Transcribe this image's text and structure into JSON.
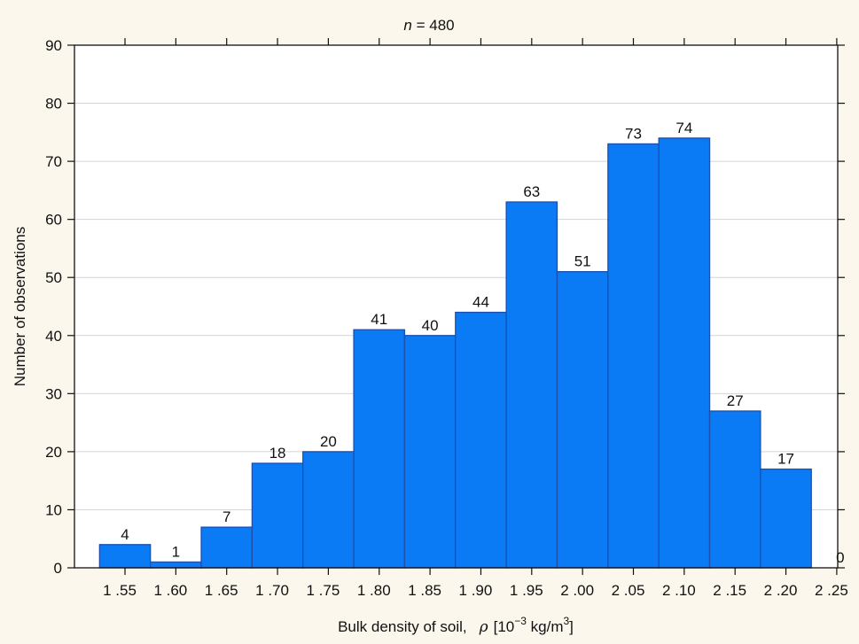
{
  "chart_data": {
    "type": "bar",
    "title_prefix": "n",
    "title_suffix": " = 480",
    "xlabel_text": "Bulk density of soil,",
    "xlabel_symbol": "ρ",
    "xlabel_unit_open": "[10",
    "xlabel_unit_exp": "−3",
    "xlabel_unit_mid": " kg/m",
    "xlabel_unit_exp2": "3",
    "xlabel_unit_close": "]",
    "ylabel": "Number of observations",
    "categories": [
      "1 .55",
      "1 .60",
      "1 .65",
      "1 .70",
      "1 .75",
      "1 .80",
      "1 .85",
      "1 .90",
      "1 .95",
      "2 .00",
      "2 .05",
      "2 .10",
      "2 .15",
      "2 .20",
      "2 .25"
    ],
    "values": [
      4,
      1,
      7,
      18,
      20,
      41,
      40,
      44,
      63,
      51,
      73,
      74,
      27,
      17,
      0
    ],
    "ylim": [
      0,
      90
    ],
    "yticks": [
      0,
      10,
      20,
      30,
      40,
      50,
      60,
      70,
      80,
      90
    ],
    "grid": "horizontal",
    "bar_color": "#0a7af5",
    "bar_edge_color": "#1d4fae",
    "grid_color": "#d4d4d4",
    "background_color": "#fbf7ec"
  }
}
